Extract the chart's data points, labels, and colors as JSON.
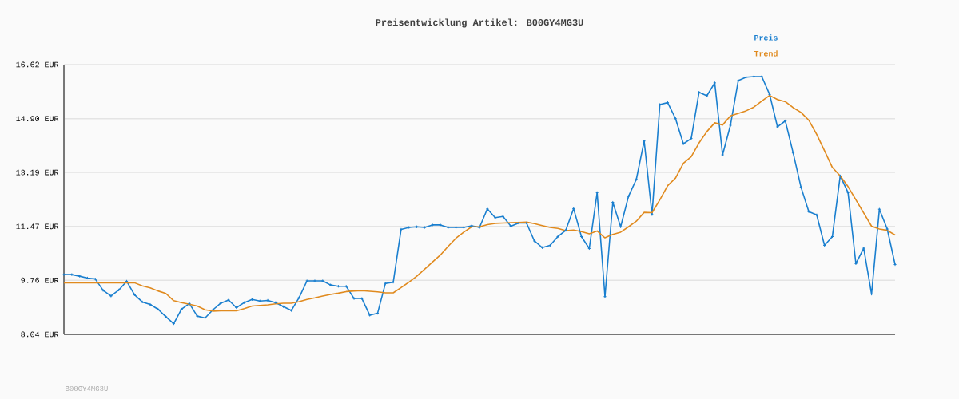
{
  "chart_data": {
    "type": "line",
    "title": "Preisentwicklung Artikel: B00GY4MG3U",
    "categories": [
      null,
      null,
      null,
      null,
      null,
      null,
      null,
      null,
      null,
      null,
      null,
      null,
      null,
      null,
      null,
      null,
      null,
      null,
      null,
      null,
      null,
      null,
      null,
      null,
      null,
      null,
      null,
      null,
      null,
      null,
      null,
      null,
      null,
      null,
      null,
      null,
      null,
      null,
      null,
      null,
      null,
      null,
      null,
      null,
      null,
      null,
      null,
      null,
      null,
      null,
      null,
      null,
      null,
      null,
      null,
      null,
      null,
      null,
      null,
      null,
      null,
      null,
      null,
      null,
      null,
      null,
      null,
      null,
      null,
      null,
      null,
      null,
      null,
      null,
      null,
      null,
      null,
      null,
      null,
      null,
      null,
      null,
      null,
      null,
      null,
      null,
      null,
      null,
      null,
      null,
      null,
      null,
      null,
      null,
      null,
      null,
      null,
      null,
      null,
      null,
      null,
      null,
      null,
      null,
      null,
      null,
      null
    ],
    "series": [
      {
        "name": "Preis",
        "color": "#1a7fcf",
        "marker": "cross",
        "values": [
          9.94,
          9.94,
          9.89,
          9.83,
          9.8,
          9.44,
          9.26,
          9.45,
          9.73,
          9.3,
          9.07,
          8.99,
          8.84,
          8.6,
          8.38,
          8.84,
          9.02,
          8.62,
          8.56,
          8.82,
          9.03,
          9.13,
          8.89,
          9.05,
          9.15,
          9.1,
          9.12,
          9.05,
          8.92,
          8.8,
          9.21,
          9.74,
          9.74,
          9.74,
          9.61,
          9.57,
          9.57,
          9.18,
          9.18,
          8.65,
          8.71,
          9.66,
          9.7,
          11.38,
          11.44,
          11.46,
          11.44,
          11.52,
          11.52,
          11.44,
          11.44,
          11.44,
          11.49,
          11.44,
          12.03,
          11.75,
          11.79,
          11.48,
          11.58,
          11.58,
          11.01,
          10.8,
          10.87,
          11.15,
          11.35,
          12.04,
          11.15,
          10.77,
          12.55,
          9.24,
          12.24,
          11.46,
          12.43,
          12.97,
          14.19,
          11.85,
          15.35,
          15.41,
          14.9,
          14.1,
          14.27,
          15.74,
          15.63,
          16.04,
          13.75,
          14.69,
          16.11,
          16.22,
          16.24,
          16.24,
          15.67,
          14.64,
          14.83,
          13.81,
          12.72,
          11.94,
          11.84,
          10.87,
          11.15,
          13.08,
          12.55,
          10.29,
          10.78,
          9.32,
          12.02,
          11.39,
          10.26
        ]
      },
      {
        "name": "Trend",
        "color": "#e08a1e",
        "values": [
          9.68,
          9.68,
          9.68,
          9.68,
          9.68,
          9.68,
          9.68,
          9.68,
          9.68,
          9.68,
          9.58,
          9.52,
          9.42,
          9.34,
          9.11,
          9.05,
          9.0,
          8.94,
          8.82,
          8.78,
          8.79,
          8.79,
          8.79,
          8.86,
          8.94,
          8.96,
          8.98,
          9.01,
          9.03,
          9.03,
          9.08,
          9.15,
          9.2,
          9.26,
          9.31,
          9.35,
          9.4,
          9.42,
          9.43,
          9.41,
          9.39,
          9.36,
          9.36,
          9.53,
          9.7,
          9.89,
          10.11,
          10.34,
          10.56,
          10.84,
          11.1,
          11.29,
          11.46,
          11.46,
          11.53,
          11.57,
          11.58,
          11.59,
          11.6,
          11.61,
          11.56,
          11.5,
          11.44,
          11.41,
          11.34,
          11.36,
          11.31,
          11.24,
          11.33,
          11.11,
          11.22,
          11.29,
          11.46,
          11.64,
          11.92,
          11.91,
          12.32,
          12.77,
          13.01,
          13.48,
          13.69,
          14.13,
          14.49,
          14.77,
          14.7,
          14.99,
          15.07,
          15.15,
          15.27,
          15.46,
          15.64,
          15.51,
          15.44,
          15.25,
          15.1,
          14.85,
          14.4,
          13.88,
          13.35,
          13.08,
          12.74,
          12.32,
          11.9,
          11.48,
          11.39,
          11.35,
          11.2
        ]
      }
    ],
    "ylim": [
      8.04,
      16.62
    ],
    "yticks": [
      {
        "value": 8.04,
        "label": "8.04 EUR"
      },
      {
        "value": 9.76,
        "label": "9.76 EUR"
      },
      {
        "value": 11.47,
        "label": "11.47 EUR"
      },
      {
        "value": 13.19,
        "label": "13.19 EUR"
      },
      {
        "value": 14.9,
        "label": "14.90 EUR"
      },
      {
        "value": 16.62,
        "label": "16.62 EUR"
      }
    ],
    "tick_labels": "y",
    "grid": "y",
    "legend": "top right",
    "annotations": [
      "B00GY4MG3U"
    ]
  }
}
